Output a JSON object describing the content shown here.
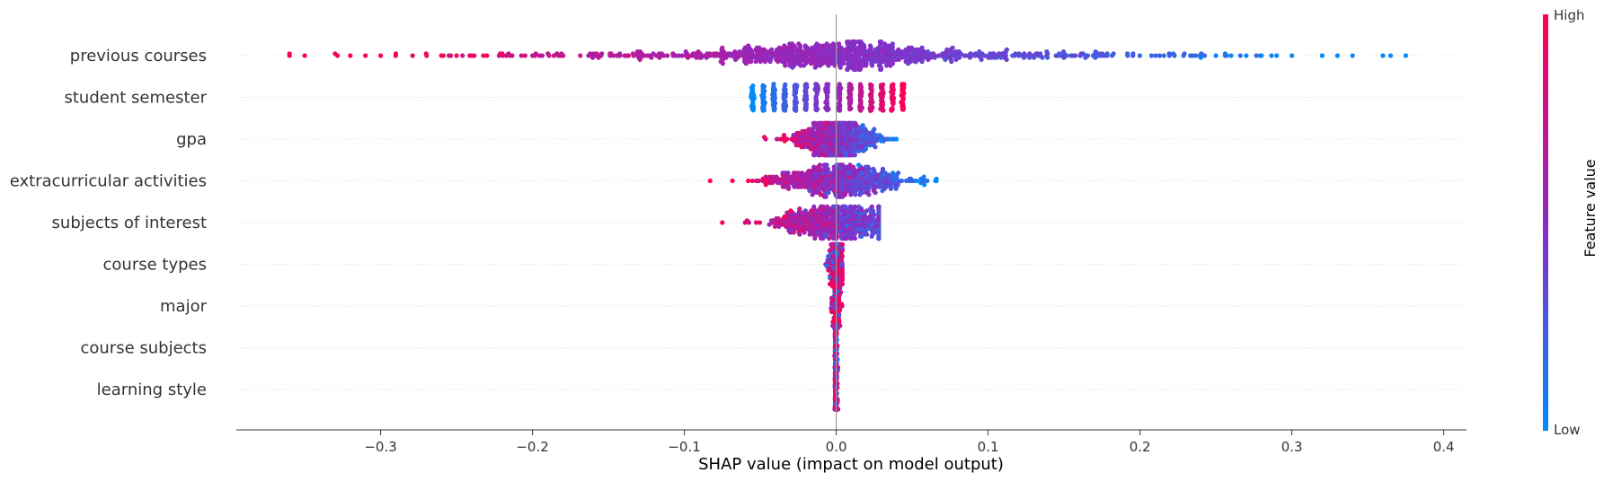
{
  "chart_data": {
    "type": "scatter",
    "subtype": "shap-beeswarm",
    "xlabel": "SHAP value (impact on model output)",
    "xlim": [
      -0.395,
      0.415
    ],
    "xticks": [
      -0.3,
      -0.2,
      -0.1,
      0.0,
      0.1,
      0.2,
      0.3,
      0.4
    ],
    "xtick_labels": [
      "−0.3",
      "−0.2",
      "−0.1",
      "0.0",
      "0.1",
      "0.2",
      "0.3",
      "0.4"
    ],
    "zero_line": true,
    "row_gridlines": "dotted",
    "colorbar": {
      "title": "Feature value",
      "high_label": "High",
      "low_label": "Low",
      "low_color": "#008bfb",
      "mid_color": "#8b2bc4",
      "high_color": "#ff0052"
    },
    "features": [
      {
        "name": "previous courses",
        "min": -0.36,
        "max": 0.375,
        "distribution": "wide; high values push negative, low values push positive, dense near 0"
      },
      {
        "name": "student semester",
        "min": -0.055,
        "max": 0.045,
        "distribution": "discrete vertical bands; low values negative, high values positive",
        "bands": [
          -0.055,
          -0.048,
          -0.041,
          -0.034,
          -0.027,
          -0.02,
          -0.013,
          -0.006,
          0.002,
          0.009,
          0.016,
          0.023,
          0.03,
          0.037,
          0.044
        ]
      },
      {
        "name": "gpa",
        "min": -0.05,
        "max": 0.045,
        "distribution": "high values negative, low values positive"
      },
      {
        "name": "extracurricular activities",
        "min": -0.083,
        "max": 0.066,
        "distribution": "high values negative, low values positive, dense near 0"
      },
      {
        "name": "subjects of interest",
        "min": -0.075,
        "max": 0.028,
        "distribution": "high values negative, low values positive, dense near 0"
      },
      {
        "name": "course types",
        "min": -0.011,
        "max": 0.004,
        "distribution": "tight cluster at 0"
      },
      {
        "name": "major",
        "min": -0.006,
        "max": 0.006,
        "distribution": "tight cluster at 0"
      },
      {
        "name": "course subjects",
        "min": -0.002,
        "max": 0.002,
        "distribution": "tight cluster at 0"
      },
      {
        "name": "learning style",
        "min": -0.002,
        "max": 0.002,
        "distribution": "tight cluster at 0"
      }
    ]
  }
}
